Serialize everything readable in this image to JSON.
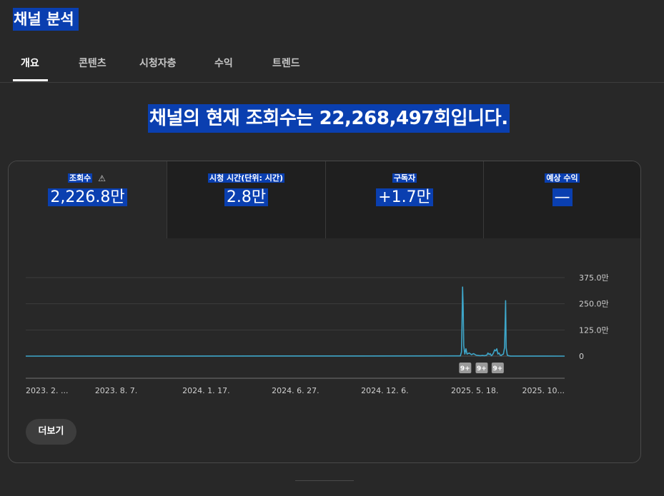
{
  "page": {
    "title": "채널 분석"
  },
  "tabs": [
    {
      "label": "개요",
      "active": true
    },
    {
      "label": "콘텐츠"
    },
    {
      "label": "시청자층"
    },
    {
      "label": "수익"
    },
    {
      "label": "트렌드"
    }
  ],
  "headline": "채널의 현재 조회수는 22,268,497회입니다.",
  "metrics": [
    {
      "label": "조회수",
      "value": "2,226.8만",
      "icon": "warning-icon"
    },
    {
      "label": "시청 시간(단위: 시간)",
      "value": "2.8만"
    },
    {
      "label": "구독자",
      "value": "+1.7만"
    },
    {
      "label": "예상 수익",
      "value": "—"
    }
  ],
  "colors": {
    "line": "#3ea6c9",
    "selection": "#0a3fb0",
    "background": "#282828"
  },
  "chart_data": {
    "type": "line",
    "y_tick_labels": [
      "375.0만",
      "250.0만",
      "125.0만",
      "0"
    ],
    "y_ticks": [
      3750000,
      2500000,
      1250000,
      0
    ],
    "ylim": [
      0,
      3750000
    ],
    "x_tick_labels": [
      "2023. 2. ...",
      "2023. 8. 7.",
      "2024. 1. 17.",
      "2024. 6. 27.",
      "2024. 12. 6.",
      "2025. 5. 18.",
      "2025. 10..."
    ],
    "x_ticks": [
      "2023-02-24",
      "2023-08-07",
      "2024-01-17",
      "2024-06-27",
      "2024-12-06",
      "2025-05-18",
      "2025-10-28"
    ],
    "xlim": [
      "2023-02-24",
      "2025-10-28"
    ],
    "grid": true,
    "series": [
      {
        "x": [
          "2023-02-24",
          "2025-04-22",
          "2025-04-24",
          "2025-04-25",
          "2025-04-26",
          "2025-04-27",
          "2025-04-28",
          "2025-04-30",
          "2025-05-02",
          "2025-05-04",
          "2025-05-08",
          "2025-05-12",
          "2025-05-16",
          "2025-05-20",
          "2025-05-24",
          "2025-05-28",
          "2025-06-01",
          "2025-06-05",
          "2025-06-09",
          "2025-06-11",
          "2025-06-13",
          "2025-06-15",
          "2025-06-17",
          "2025-06-19",
          "2025-06-21",
          "2025-06-23",
          "2025-06-25",
          "2025-06-27",
          "2025-06-29",
          "2025-07-01",
          "2025-07-03",
          "2025-07-05",
          "2025-07-07",
          "2025-07-09",
          "2025-07-11",
          "2025-07-12",
          "2025-07-13",
          "2025-07-14",
          "2025-07-16",
          "2025-07-18",
          "2025-07-22",
          "2025-10-28"
        ],
        "values": [
          0,
          10000,
          200000,
          1800000,
          3300000,
          2400000,
          500000,
          100000,
          350000,
          100000,
          150000,
          70000,
          120000,
          50000,
          30000,
          20000,
          30000,
          20000,
          50000,
          150000,
          80000,
          120000,
          20000,
          60000,
          150000,
          300000,
          250000,
          350000,
          100000,
          150000,
          50000,
          30000,
          80000,
          100000,
          400000,
          1500000,
          2650000,
          400000,
          50000,
          20000,
          5000,
          0
        ]
      }
    ],
    "annotations": [
      {
        "text": "9+",
        "x": "2025-04-30"
      },
      {
        "text": "9+",
        "x": "2025-05-30"
      },
      {
        "text": "9+",
        "x": "2025-06-28"
      }
    ]
  },
  "more_button": {
    "label": "더보기"
  }
}
